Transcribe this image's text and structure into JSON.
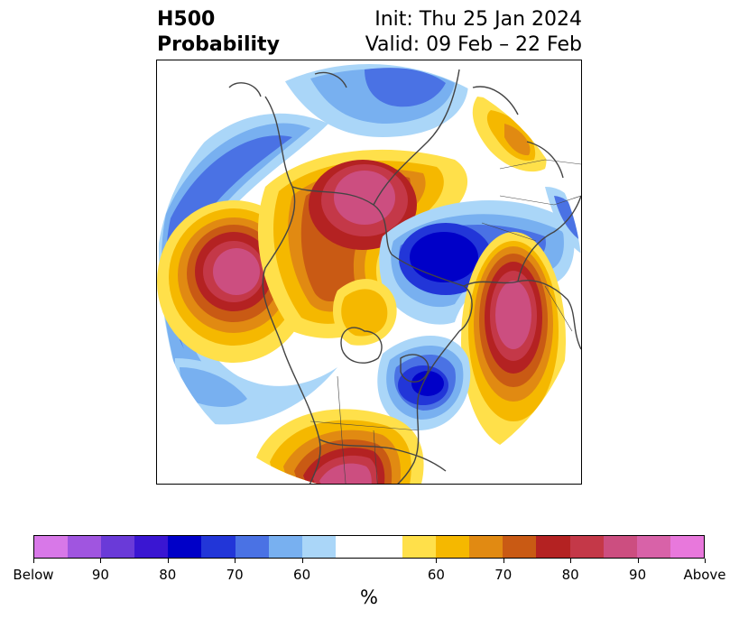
{
  "title": {
    "left_line1": "H500",
    "left_line2": "Probability",
    "right_line1": "Init: Thu 25 Jan 2024",
    "right_line2": "Valid: 09 Feb – 22 Feb"
  },
  "colorbar": {
    "unit": "%",
    "colors": [
      "#d878e8",
      "#a055e0",
      "#6a3ad8",
      "#3a16d2",
      "#0000c8",
      "#2236d8",
      "#4a72e4",
      "#78b0f0",
      "#aad6f8",
      "#ffffff",
      "#ffffff",
      "#ffe04a",
      "#f5b800",
      "#e18a12",
      "#c95a14",
      "#b42222",
      "#c43848",
      "#cc4e80",
      "#d862a8",
      "#e878dc"
    ],
    "tick_labels": [
      "Below",
      "90",
      "80",
      "70",
      "60",
      "60",
      "70",
      "80",
      "90",
      "Above"
    ]
  },
  "map": {
    "projection": "north-polar-stereographic",
    "variable": "500 hPa height probability",
    "palette": {
      "below_60": "#aad6f8",
      "below_65": "#78b0f0",
      "below_70": "#4a72e4",
      "below_75": "#2236d8",
      "below_80": "#0000c8",
      "above_60": "#ffe04a",
      "above_65": "#f5b800",
      "above_70": "#e18a12",
      "above_75": "#c95a14",
      "above_80": "#b42222",
      "above_85": "#c43848",
      "above_90": "#cc4e80",
      "coast": "#444444"
    }
  }
}
